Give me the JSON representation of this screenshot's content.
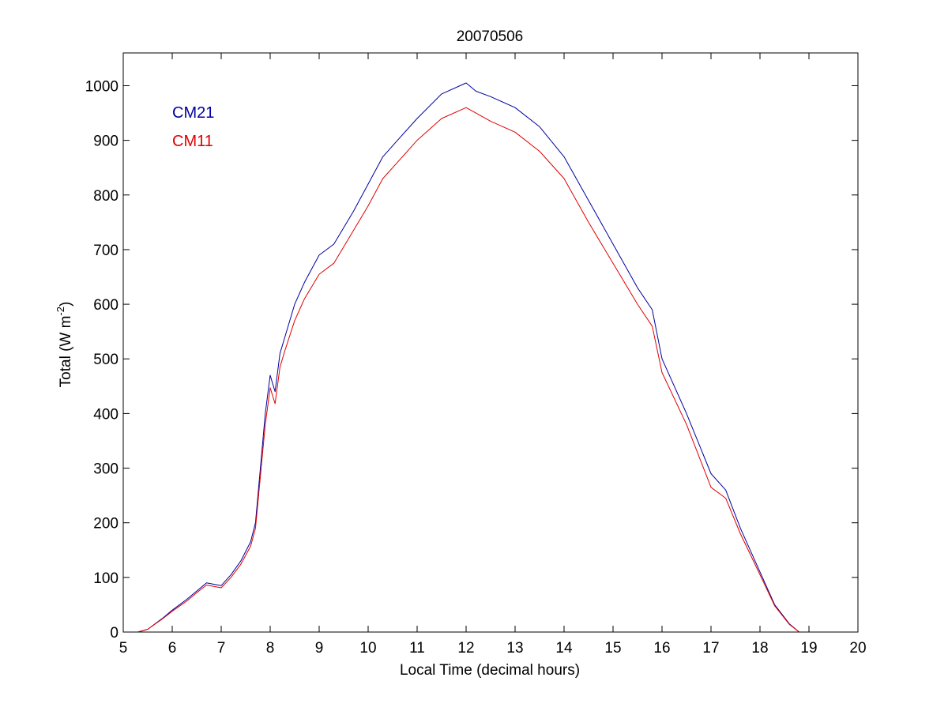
{
  "chart_data": {
    "type": "line",
    "title": "20070506",
    "xlabel": "Local Time (decimal hours)",
    "ylabel_prefix": "Total (W m",
    "ylabel_sup": "-2",
    "ylabel_suffix": ")",
    "xlim": [
      5,
      20
    ],
    "ylim": [
      0,
      1060
    ],
    "xticks": [
      5,
      6,
      7,
      8,
      9,
      10,
      11,
      12,
      13,
      14,
      15,
      16,
      17,
      18,
      19,
      20
    ],
    "yticks": [
      0,
      100,
      200,
      300,
      400,
      500,
      600,
      700,
      800,
      900,
      1000
    ],
    "grid": false,
    "legend_position": "top-left",
    "series": [
      {
        "name": "CM21",
        "color": "#00009f",
        "x": [
          5.3,
          5.5,
          5.8,
          6.0,
          6.3,
          6.5,
          6.7,
          7.0,
          7.2,
          7.4,
          7.6,
          7.7,
          7.8,
          7.9,
          8.0,
          8.1,
          8.2,
          8.3,
          8.5,
          8.7,
          9.0,
          9.3,
          9.5,
          9.7,
          10.0,
          10.3,
          10.6,
          11.0,
          11.5,
          12.0,
          12.2,
          12.5,
          13.0,
          13.5,
          14.0,
          14.5,
          15.0,
          15.5,
          15.8,
          16.0,
          16.5,
          17.0,
          17.3,
          17.6,
          18.0,
          18.3,
          18.6,
          18.8
        ],
        "y": [
          0,
          5,
          25,
          40,
          60,
          75,
          90,
          85,
          105,
          130,
          165,
          200,
          300,
          400,
          470,
          440,
          510,
          540,
          600,
          640,
          690,
          710,
          740,
          770,
          820,
          870,
          900,
          940,
          985,
          1005,
          990,
          980,
          960,
          925,
          870,
          790,
          710,
          630,
          590,
          500,
          400,
          290,
          260,
          190,
          110,
          50,
          15,
          0
        ]
      },
      {
        "name": "CM11",
        "color": "#e00000",
        "x": [
          5.3,
          5.5,
          5.8,
          6.0,
          6.3,
          6.5,
          6.7,
          7.0,
          7.2,
          7.4,
          7.6,
          7.7,
          7.8,
          7.9,
          8.0,
          8.1,
          8.2,
          8.3,
          8.5,
          8.7,
          9.0,
          9.3,
          9.5,
          9.7,
          10.0,
          10.3,
          10.6,
          11.0,
          11.5,
          12.0,
          12.2,
          12.5,
          13.0,
          13.5,
          14.0,
          14.5,
          15.0,
          15.5,
          15.8,
          16.0,
          16.5,
          17.0,
          17.3,
          17.6,
          18.0,
          18.3,
          18.6,
          18.8
        ],
        "y": [
          0,
          5,
          24,
          38,
          57,
          72,
          86,
          81,
          100,
          124,
          157,
          190,
          285,
          380,
          447,
          418,
          485,
          515,
          570,
          610,
          655,
          675,
          705,
          735,
          780,
          830,
          860,
          900,
          940,
          960,
          950,
          935,
          915,
          880,
          830,
          750,
          675,
          600,
          560,
          475,
          380,
          265,
          245,
          180,
          105,
          48,
          14,
          0
        ]
      }
    ]
  }
}
